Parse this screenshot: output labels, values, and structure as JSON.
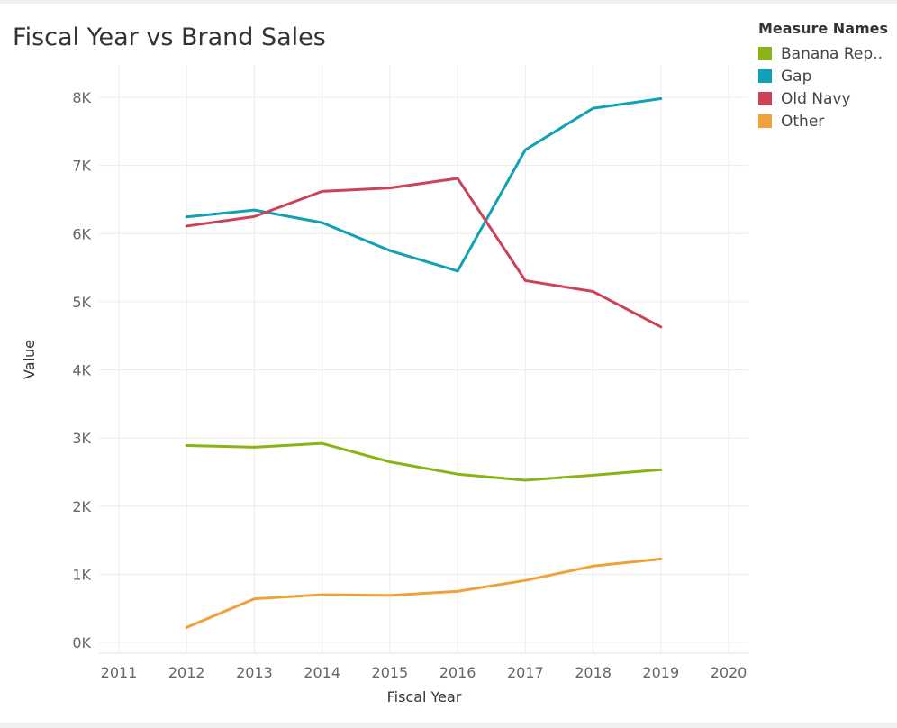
{
  "chart_data": {
    "type": "line",
    "title": "Fiscal Year vs Brand Sales",
    "xlabel": "Fiscal Year",
    "ylabel": "Value",
    "x": [
      2012,
      2013,
      2014,
      2015,
      2016,
      2017,
      2018,
      2019
    ],
    "xlim": [
      2011,
      2020
    ],
    "x_ticks": [
      "2011",
      "2012",
      "2013",
      "2014",
      "2015",
      "2016",
      "2017",
      "2018",
      "2019",
      "2020"
    ],
    "ylim": [
      0,
      8000
    ],
    "y_ticks": [
      "0K",
      "1K",
      "2K",
      "3K",
      "4K",
      "5K",
      "6K",
      "7K",
      "8K"
    ],
    "grid": true,
    "legend": {
      "title": "Measure Names",
      "position": "top-right"
    },
    "series": [
      {
        "name": "Banana Rep..",
        "color": "#8ab316",
        "values": [
          2890,
          2865,
          2920,
          2650,
          2470,
          2380,
          2455,
          2535
        ]
      },
      {
        "name": "Gap",
        "color": "#11a0b4",
        "values": [
          6245,
          6345,
          6160,
          5750,
          5450,
          7230,
          7840,
          7980
        ]
      },
      {
        "name": "Old Navy",
        "color": "#cd4256",
        "values": [
          6110,
          6250,
          6620,
          6670,
          6810,
          5310,
          5150,
          4630
        ]
      },
      {
        "name": "Other",
        "color": "#f2a03a",
        "values": [
          220,
          640,
          700,
          690,
          750,
          910,
          1120,
          1225
        ]
      }
    ]
  }
}
